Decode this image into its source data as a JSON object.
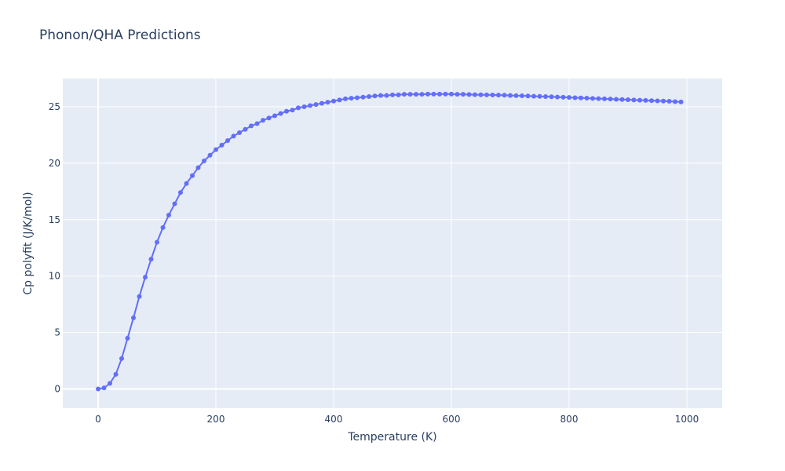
{
  "chart_data": {
    "type": "line",
    "mode": "lines+markers",
    "title": "Phonon/QHA Predictions",
    "xlabel": "Temperature (K)",
    "ylabel": "Cp polyfit (J/K/mol)",
    "xlim": [
      -60,
      1060
    ],
    "ylim": [
      -1.7,
      27.5
    ],
    "xticks": [
      0,
      200,
      400,
      600,
      800,
      1000
    ],
    "yticks": [
      0,
      5,
      10,
      15,
      20,
      25
    ],
    "grid": true,
    "legend": "none",
    "colors": {
      "series": "#636efa",
      "plot_bg": "#e5ecf6",
      "grid": "#ffffff",
      "text": "#2a3f5f"
    },
    "series": [
      {
        "x": [
          0,
          10,
          20,
          30,
          40,
          50,
          60,
          70,
          80,
          90,
          100,
          110,
          120,
          130,
          140,
          150,
          160,
          170,
          180,
          190,
          200,
          210,
          220,
          230,
          240,
          250,
          260,
          270,
          280,
          290,
          300,
          310,
          320,
          330,
          340,
          350,
          360,
          370,
          380,
          390,
          400,
          410,
          420,
          430,
          440,
          450,
          460,
          470,
          480,
          490,
          500,
          510,
          520,
          530,
          540,
          550,
          560,
          570,
          580,
          590,
          600,
          610,
          620,
          630,
          640,
          650,
          660,
          670,
          680,
          690,
          700,
          710,
          720,
          730,
          740,
          750,
          760,
          770,
          780,
          790,
          800,
          810,
          820,
          830,
          840,
          850,
          860,
          870,
          880,
          890,
          900,
          910,
          920,
          930,
          940,
          950,
          960,
          970,
          980,
          990
        ],
        "y": [
          0,
          0.1,
          0.5,
          1.3,
          2.7,
          4.5,
          6.3,
          8.2,
          9.9,
          11.5,
          13.0,
          14.3,
          15.4,
          16.4,
          17.4,
          18.2,
          18.9,
          19.6,
          20.2,
          20.7,
          21.2,
          21.6,
          22.0,
          22.4,
          22.7,
          23.0,
          23.3,
          23.5,
          23.8,
          24.0,
          24.2,
          24.4,
          24.6,
          24.7,
          24.9,
          25.0,
          25.1,
          25.2,
          25.3,
          25.4,
          25.5,
          25.6,
          25.7,
          25.75,
          25.8,
          25.85,
          25.9,
          25.95,
          26.0,
          26.0,
          26.05,
          26.05,
          26.1,
          26.1,
          26.1,
          26.1,
          26.12,
          26.12,
          26.12,
          26.12,
          26.12,
          26.1,
          26.1,
          26.08,
          26.07,
          26.06,
          26.05,
          26.04,
          26.03,
          26.02,
          26.0,
          25.98,
          25.97,
          25.95,
          25.93,
          25.92,
          25.9,
          25.88,
          25.86,
          25.84,
          25.82,
          25.8,
          25.78,
          25.76,
          25.74,
          25.72,
          25.7,
          25.68,
          25.66,
          25.64,
          25.62,
          25.6,
          25.58,
          25.56,
          25.54,
          25.52,
          25.5,
          25.48,
          25.45,
          25.42
        ]
      }
    ]
  }
}
